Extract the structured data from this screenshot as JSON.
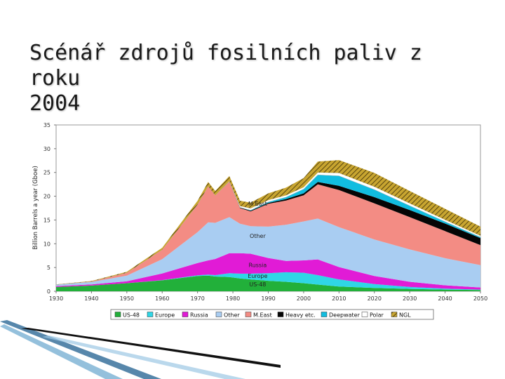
{
  "slide": {
    "title_line1": "Scénář zdrojů fosilních paliv z roku",
    "title_line2": "2004"
  },
  "chart_data": {
    "type": "area",
    "stacked": true,
    "title": "",
    "xlabel": "",
    "ylabel": "Billion Barrels a year (Gboe)",
    "xlim": [
      1930,
      2050
    ],
    "ylim": [
      0,
      35
    ],
    "x_ticks": [
      1930,
      1940,
      1950,
      1960,
      1970,
      1980,
      1990,
      2000,
      2010,
      2020,
      2030,
      2040,
      2050
    ],
    "x_tick_labels": [
      "1930",
      "1940",
      "1950",
      "1960",
      "1970",
      "1980",
      "1990",
      "2000",
      "2010",
      "2020",
      "2030",
      "2040",
      "2050"
    ],
    "y_ticks": [
      0,
      5,
      10,
      15,
      20,
      25,
      30,
      35
    ],
    "y_tick_labels": [
      "0",
      "5",
      "10",
      "15",
      "20",
      "25",
      "30",
      "35"
    ],
    "grid": false,
    "legend_position": "bottom",
    "x": [
      1930,
      1940,
      1950,
      1960,
      1970,
      1973,
      1975,
      1979,
      1982,
      1985,
      1990,
      1995,
      2000,
      2004,
      2010,
      2020,
      2030,
      2040,
      2050
    ],
    "series": [
      {
        "name": "US-48",
        "color": "#22b03a",
        "values": [
          0.9,
          1.2,
          1.7,
          2.3,
          3.2,
          3.3,
          3.1,
          3.0,
          2.7,
          2.5,
          2.2,
          2.0,
          1.7,
          1.4,
          1.0,
          0.7,
          0.5,
          0.35,
          0.25
        ]
      },
      {
        "name": "Europe",
        "color": "#2fd6e6",
        "values": [
          0.0,
          0.0,
          0.0,
          0.05,
          0.15,
          0.2,
          0.3,
          0.8,
          1.0,
          1.2,
          1.6,
          2.0,
          2.2,
          2.0,
          1.5,
          0.8,
          0.4,
          0.2,
          0.1
        ]
      },
      {
        "name": "Russia",
        "color": "#e11bd6",
        "values": [
          0.2,
          0.25,
          0.4,
          1.4,
          2.6,
          3.0,
          3.4,
          4.2,
          4.3,
          4.2,
          3.2,
          2.4,
          2.6,
          3.3,
          2.6,
          1.7,
          1.1,
          0.7,
          0.45
        ]
      },
      {
        "name": "Other",
        "color": "#a9cdf2",
        "values": [
          0.3,
          0.5,
          1.2,
          3.0,
          6.5,
          8.0,
          7.6,
          7.6,
          6.2,
          5.8,
          6.6,
          7.6,
          8.2,
          8.6,
          8.4,
          7.7,
          6.8,
          5.7,
          4.7
        ]
      },
      {
        "name": "M.East",
        "color": "#f38c84",
        "values": [
          0.0,
          0.1,
          0.6,
          2.0,
          5.8,
          7.6,
          5.8,
          7.4,
          3.3,
          3.1,
          4.8,
          5.1,
          5.5,
          7.2,
          7.8,
          7.6,
          6.8,
          5.7,
          4.2
        ]
      },
      {
        "name": "Heavy etc.",
        "color": "#050505",
        "values": [
          0.0,
          0.0,
          0.0,
          0.0,
          0.0,
          0.0,
          0.0,
          0.05,
          0.1,
          0.15,
          0.2,
          0.3,
          0.4,
          0.5,
          0.9,
          1.3,
          1.5,
          1.6,
          1.5
        ]
      },
      {
        "name": "Deepwater",
        "color": "#11bde0",
        "values": [
          0.0,
          0.0,
          0.0,
          0.0,
          0.0,
          0.0,
          0.0,
          0.0,
          0.05,
          0.1,
          0.2,
          0.4,
          0.9,
          1.5,
          2.1,
          1.6,
          0.9,
          0.4,
          0.2
        ]
      },
      {
        "name": "Polar",
        "color": "#ffffff",
        "values": [
          0.0,
          0.0,
          0.0,
          0.0,
          0.0,
          0.0,
          0.0,
          0.1,
          0.3,
          0.4,
          0.4,
          0.4,
          0.4,
          0.5,
          0.6,
          0.6,
          0.5,
          0.4,
          0.3
        ]
      },
      {
        "name": "NGL",
        "color": "#c8a530",
        "values": [
          0.05,
          0.1,
          0.2,
          0.4,
          0.8,
          0.9,
          0.9,
          1.1,
          1.1,
          1.2,
          1.4,
          1.6,
          1.9,
          2.3,
          2.7,
          2.9,
          2.6,
          2.3,
          1.9
        ]
      }
    ],
    "annotations": [
      {
        "text": "M.East",
        "x": 1987,
        "y": 18
      },
      {
        "text": "Other",
        "x": 1987,
        "y": 11.2
      },
      {
        "text": "Russia",
        "x": 1987,
        "y": 5.1
      },
      {
        "text": "Europe",
        "x": 1987,
        "y": 2.8
      },
      {
        "text": "US-48",
        "x": 1987,
        "y": 1.0
      }
    ],
    "legend": [
      "US-48",
      "Europe",
      "Russia",
      "Other",
      "M.East",
      "Heavy etc.",
      "Deepwater",
      "Polar",
      "NGL"
    ]
  }
}
